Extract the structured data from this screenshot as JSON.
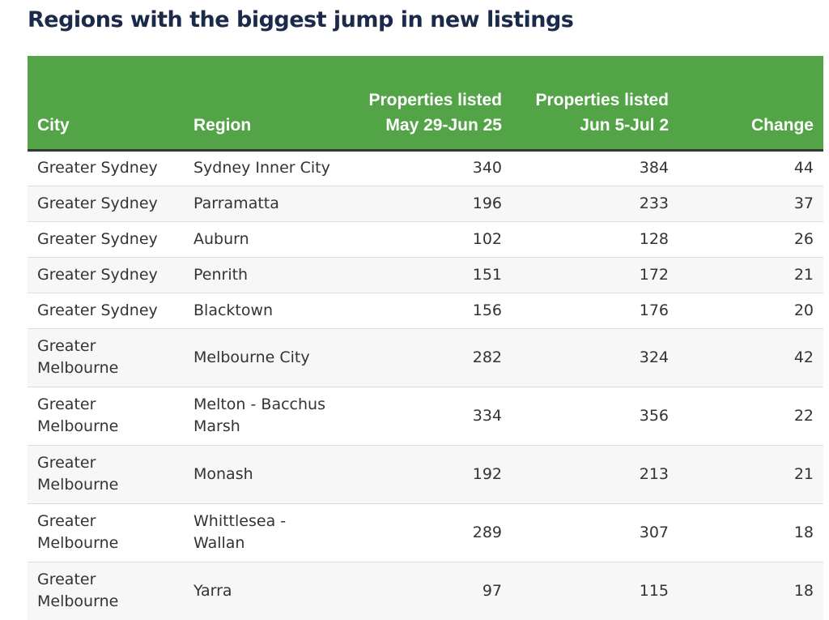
{
  "title": "Regions with the biggest jump in new listings",
  "chart_data": {
    "type": "table",
    "title": "Regions with the biggest jump in new listings",
    "columns": [
      "City",
      "Region",
      "Properties listed May 29-Jun 25",
      "Properties listed Jun 5-Jul 2",
      "Change"
    ],
    "rows": [
      [
        "Greater Sydney",
        "Sydney Inner City",
        "340",
        "384",
        "44"
      ],
      [
        "Greater Sydney",
        "Parramatta",
        "196",
        "233",
        "37"
      ],
      [
        "Greater Sydney",
        "Auburn",
        "102",
        "128",
        "26"
      ],
      [
        "Greater Sydney",
        "Penrith",
        "151",
        "172",
        "21"
      ],
      [
        "Greater Sydney",
        "Blacktown",
        "156",
        "176",
        "20"
      ],
      [
        "Greater Melbourne",
        "Melbourne City",
        "282",
        "324",
        "42"
      ],
      [
        "Greater Melbourne",
        "Melton - Bacchus Marsh",
        "334",
        "356",
        "22"
      ],
      [
        "Greater Melbourne",
        "Monash",
        "192",
        "213",
        "21"
      ],
      [
        "Greater Melbourne",
        "Whittlesea - Wallan",
        "289",
        "307",
        "18"
      ],
      [
        "Greater Melbourne",
        "Yarra",
        "97",
        "115",
        "18"
      ]
    ]
  },
  "colors": {
    "header_background": "#52a447",
    "header_text": "#ffffff",
    "title_text": "#1b2a4a",
    "body_text": "#333333"
  }
}
